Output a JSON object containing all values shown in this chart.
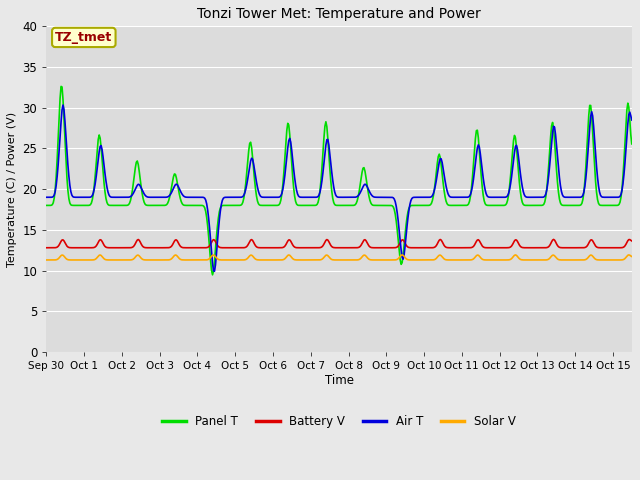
{
  "title": "Tonzi Tower Met: Temperature and Power",
  "xlabel": "Time",
  "ylabel": "Temperature (C) / Power (V)",
  "ylim": [
    0,
    40
  ],
  "yticks": [
    0,
    5,
    10,
    15,
    20,
    25,
    30,
    35,
    40
  ],
  "x_labels": [
    "Sep 30",
    "Oct 1",
    "Oct 2",
    "Oct 3",
    "Oct 4",
    "Oct 5",
    "Oct 6",
    "Oct 7",
    "Oct 8",
    "Oct 9",
    "Oct 10",
    "Oct 11",
    "Oct 12",
    "Oct 13",
    "Oct 14",
    "Oct 15"
  ],
  "annotation_text": "TZ_tmet",
  "annotation_bg": "#ffffcc",
  "annotation_border": "#aaaa00",
  "annotation_text_color": "#990000",
  "bg_color": "#e8e8e8",
  "plot_bg_color": "#dcdcdc",
  "grid_color": "#ffffff",
  "colors": {
    "Panel T": "#00dd00",
    "Battery V": "#dd0000",
    "Air T": "#0000dd",
    "Solar V": "#ffaa00"
  },
  "line_width": 1.2,
  "panel_peaks": [
    37,
    29,
    25,
    23,
    7.2,
    28,
    31,
    31,
    24,
    8.7,
    26,
    30,
    29,
    31,
    34
  ],
  "air_peaks": [
    33,
    27,
    21,
    21,
    7.5,
    25,
    28,
    28,
    21,
    9.5,
    25,
    27,
    27,
    30,
    32
  ],
  "panel_night": 18,
  "air_night": 19,
  "battery_base": 12.8,
  "solar_base": 11.3
}
